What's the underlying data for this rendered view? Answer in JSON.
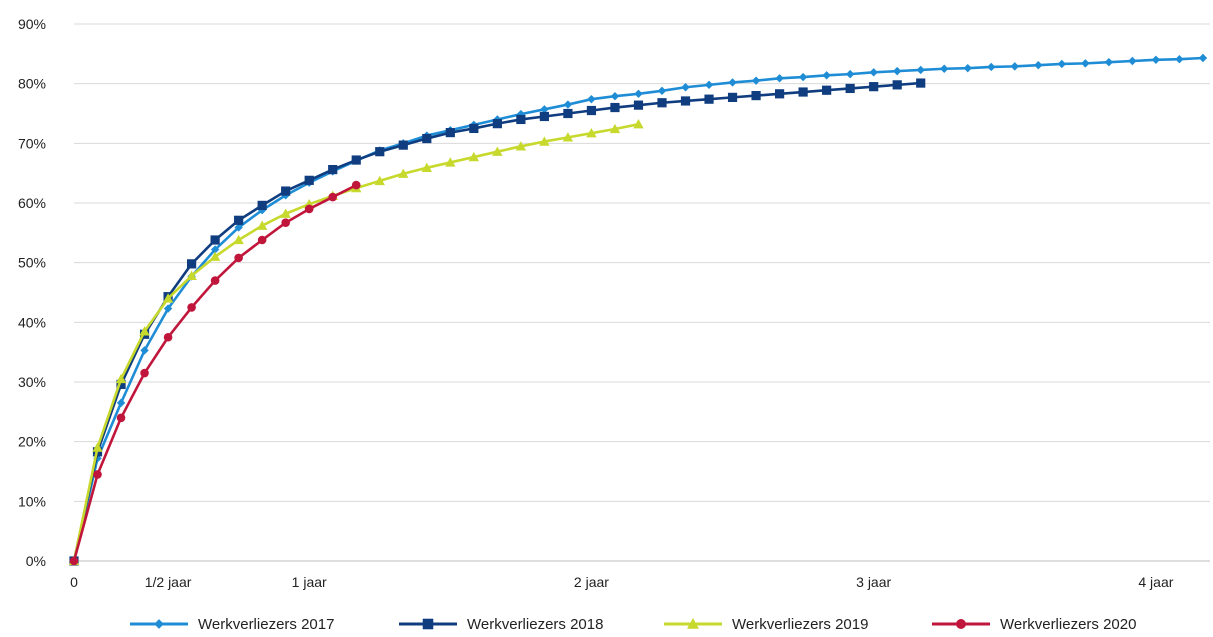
{
  "chart_data": {
    "type": "line",
    "title": "",
    "xlabel": "",
    "ylabel": "",
    "ylim": [
      0,
      90
    ],
    "y_ticks": [
      {
        "value": 0,
        "label": "0%"
      },
      {
        "value": 10,
        "label": "10%"
      },
      {
        "value": 20,
        "label": "20%"
      },
      {
        "value": 30,
        "label": "30%"
      },
      {
        "value": 40,
        "label": "40%"
      },
      {
        "value": 50,
        "label": "50%"
      },
      {
        "value": 60,
        "label": "60%"
      },
      {
        "value": 70,
        "label": "70%"
      },
      {
        "value": 80,
        "label": "80%"
      },
      {
        "value": 90,
        "label": "90%"
      }
    ],
    "x_ticks": [
      {
        "value": 0,
        "label": "0"
      },
      {
        "value": 4,
        "label": "1/2 jaar"
      },
      {
        "value": 10,
        "label": "1 jaar"
      },
      {
        "value": 22,
        "label": "2 jaar"
      },
      {
        "value": 34,
        "label": "3 jaar"
      },
      {
        "value": 46,
        "label": "4 jaar"
      }
    ],
    "grid": {
      "horizontal": true,
      "vertical": false
    },
    "legend": "bottom",
    "series": [
      {
        "name": "Werkverliezers 2017",
        "color": "#1f8dd6",
        "marker": "diamond",
        "values": [
          0,
          17.2,
          26.5,
          35.3,
          42.3,
          47.7,
          52.2,
          55.9,
          58.8,
          61.3,
          63.4,
          65.3,
          67.1,
          68.8,
          70.0,
          71.3,
          72.2,
          73.1,
          74.0,
          74.9,
          75.7,
          76.5,
          77.4,
          77.9,
          78.3,
          78.8,
          79.4,
          79.8,
          80.2,
          80.5,
          80.9,
          81.1,
          81.4,
          81.6,
          81.9,
          82.1,
          82.3,
          82.5,
          82.6,
          82.8,
          82.9,
          83.1,
          83.3,
          83.4,
          83.6,
          83.8,
          84.0,
          84.1,
          84.3
        ]
      },
      {
        "name": "Werkverliezers 2018",
        "color": "#0f3d7f",
        "marker": "square",
        "values": [
          0,
          18.3,
          29.6,
          38.0,
          44.3,
          49.8,
          53.8,
          57.1,
          59.6,
          62.0,
          63.8,
          65.6,
          67.2,
          68.6,
          69.7,
          70.8,
          71.8,
          72.5,
          73.3,
          74.0,
          74.5,
          75.0,
          75.5,
          76.0,
          76.4,
          76.8,
          77.1,
          77.4,
          77.7,
          78.0,
          78.3,
          78.6,
          78.9,
          79.2,
          79.5,
          79.8,
          80.1
        ]
      },
      {
        "name": "Werkverliezers 2019",
        "color": "#c7d92d",
        "marker": "triangle",
        "values": [
          0,
          19.0,
          30.5,
          38.5,
          44.0,
          47.8,
          51.0,
          53.8,
          56.2,
          58.2,
          59.8,
          61.2,
          62.5,
          63.7,
          64.9,
          65.9,
          66.8,
          67.7,
          68.6,
          69.5,
          70.3,
          71.0,
          71.7,
          72.4,
          73.2
        ]
      },
      {
        "name": "Werkverliezers 2020",
        "color": "#c1163b",
        "marker": "circle",
        "values": [
          0,
          14.5,
          24.0,
          31.5,
          37.5,
          42.5,
          47.0,
          50.8,
          53.8,
          56.7,
          59.0,
          61.0,
          63.0
        ]
      }
    ]
  }
}
